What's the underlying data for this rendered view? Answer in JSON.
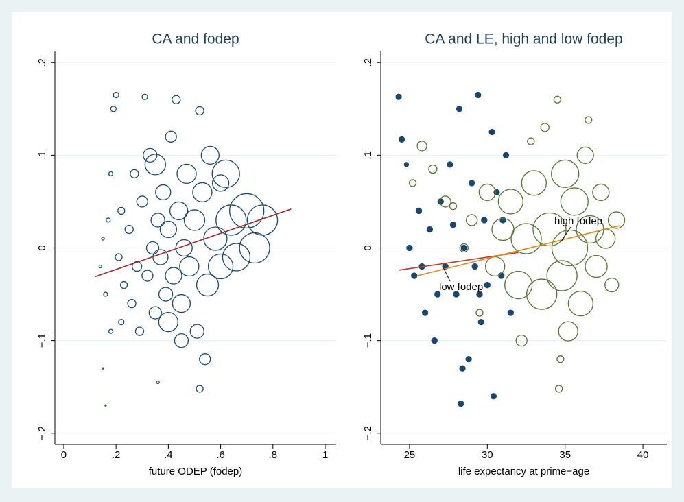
{
  "chart_data": [
    {
      "type": "scatter",
      "title": "CA and fodep",
      "x_label": "future ODEP (fodep)",
      "xlim": [
        -0.034,
        1.042
      ],
      "ylim": [
        -0.212,
        0.212
      ],
      "xticks": [
        0,
        {
          "value": 0.2,
          "label": ".2"
        },
        {
          "value": 0.4,
          "label": ".4"
        },
        {
          "value": 0.6,
          "label": ".6"
        },
        {
          "value": 0.8,
          "label": ".8"
        },
        1
      ],
      "yticks": [
        {
          "value": -0.2,
          "label": "−.2"
        },
        {
          "value": -0.1,
          "label": "−.1"
        },
        0,
        {
          "value": 0.1,
          "label": ".1"
        },
        {
          "value": 0.2,
          "label": ".2"
        }
      ],
      "grid": true,
      "series": [
        {
          "color": "#1a476f",
          "filled": false,
          "x": [
            0.14,
            0.15,
            0.16,
            0.17,
            0.18,
            0.2,
            0.19,
            0.21,
            0.22,
            0.23,
            0.25,
            0.26,
            0.27,
            0.28,
            0.3,
            0.31,
            0.32,
            0.33,
            0.34,
            0.35,
            0.36,
            0.37,
            0.38,
            0.39,
            0.4,
            0.41,
            0.42,
            0.43,
            0.44,
            0.45,
            0.46,
            0.47,
            0.48,
            0.5,
            0.51,
            0.52,
            0.53,
            0.55,
            0.56,
            0.58,
            0.6,
            0.62,
            0.64,
            0.66,
            0.7,
            0.73,
            0.76,
            0.52,
            0.36,
            0.16,
            0.15,
            0.18,
            0.22,
            0.29,
            0.4,
            0.45,
            0.54,
            0.6,
            0.35
          ],
          "y": [
            -0.02,
            0.01,
            -0.05,
            0.03,
            -0.09,
            0.165,
            0.15,
            -0.01,
            0.04,
            -0.04,
            0.02,
            -0.06,
            0.08,
            -0.02,
            0.05,
            0.163,
            -0.03,
            0.1,
            0.0,
            -0.07,
            0.03,
            -0.01,
            0.06,
            -0.05,
            0.02,
            0.12,
            -0.03,
            0.16,
            0.04,
            -0.06,
            0.0,
            0.08,
            -0.02,
            0.03,
            -0.09,
            0.148,
            0.06,
            -0.04,
            0.1,
            0.01,
            -0.02,
            0.08,
            0.03,
            -0.01,
            0.04,
            0.0,
            0.03,
            -0.152,
            -0.145,
            -0.17,
            -0.13,
            0.08,
            -0.08,
            -0.09,
            -0.08,
            -0.1,
            -0.12,
            0.07,
            0.09
          ],
          "size": [
            2,
            2,
            3,
            3,
            3,
            4,
            4,
            5,
            5,
            5,
            6,
            6,
            6,
            7,
            8,
            4,
            8,
            10,
            9,
            9,
            10,
            11,
            11,
            10,
            12,
            8,
            12,
            6,
            13,
            13,
            12,
            14,
            14,
            15,
            10,
            6,
            14,
            16,
            13,
            17,
            18,
            20,
            22,
            20,
            25,
            22,
            22,
            5,
            2,
            1,
            1,
            3,
            4,
            6,
            14,
            10,
            8,
            12,
            15
          ]
        }
      ],
      "lines": [
        {
          "color": "#a4262c",
          "x": [
            0.12,
            0.87
          ],
          "y": [
            -0.031,
            0.042
          ]
        }
      ]
    },
    {
      "type": "scatter",
      "title": "CA and LE, high and low fodep",
      "x_label": "life expectancy at prime−age",
      "xlim": [
        23.15,
        41.54
      ],
      "ylim": [
        -0.212,
        0.212
      ],
      "xticks": [
        25,
        30,
        35,
        40
      ],
      "yticks": [
        {
          "value": -0.2,
          "label": "−.2"
        },
        {
          "value": -0.1,
          "label": "−.1"
        },
        0,
        {
          "value": 0.1,
          "label": ".1"
        },
        {
          "value": 0.2,
          "label": ".2"
        }
      ],
      "grid": true,
      "series": [
        {
          "color": "#1a476f",
          "filled": true,
          "x": [
            24.3,
            24.5,
            24.8,
            25.0,
            25.3,
            25.6,
            26,
            26.3,
            26.6,
            27,
            27.3,
            27.6,
            28,
            28.2,
            28.5,
            28.8,
            29,
            29.2,
            29.4,
            29.6,
            29.8,
            30,
            30.3,
            30.4,
            30.6,
            30.9,
            31.2,
            31.5,
            28.3,
            28.4,
            26.8,
            27.8,
            29.5,
            31,
            25.8
          ],
          "y": [
            0.163,
            0.117,
            0.09,
            0.0,
            -0.03,
            0.04,
            -0.07,
            0.02,
            -0.1,
            0.05,
            -0.02,
            0.09,
            -0.05,
            0.15,
            0.0,
            -0.12,
            0.07,
            -0.02,
            0.165,
            -0.08,
            0.03,
            -0.04,
            0.125,
            -0.16,
            0.06,
            -0.03,
            0.1,
            -0.07,
            -0.168,
            -0.13,
            -0.05,
            0.025,
            -0.05,
            0.03,
            -0.02
          ],
          "size": [
            4,
            4,
            3,
            4,
            4,
            4,
            4,
            4,
            4,
            4,
            4,
            4,
            4,
            4,
            4,
            4,
            4,
            4,
            4,
            4,
            4,
            4,
            4,
            4,
            4,
            4,
            4,
            4,
            4,
            4,
            4,
            4,
            4,
            4,
            4
          ]
        },
        {
          "color": "#55752f",
          "filled": false,
          "x": [
            25.2,
            25.8,
            26.5,
            27.3,
            27.8,
            28.5,
            29,
            29.5,
            30,
            30.5,
            31,
            31.5,
            32,
            32.5,
            33,
            33.5,
            34,
            34.5,
            34.8,
            35,
            35.3,
            35.6,
            36,
            36.3,
            36.6,
            37,
            37.3,
            37.6,
            38,
            38.3,
            35.2,
            34.6,
            34.7,
            33.7,
            32.8,
            36.5,
            32.2
          ],
          "y": [
            0.07,
            0.11,
            0.085,
            0.05,
            0.045,
            0.0,
            0.03,
            -0.07,
            0.06,
            -0.02,
            0.02,
            0.05,
            -0.04,
            0.01,
            0.07,
            -0.05,
            0.02,
            0.16,
            -0.03,
            0.08,
            0.0,
            0.05,
            -0.06,
            0.1,
            0.02,
            -0.02,
            0.06,
            0.01,
            -0.04,
            0.03,
            -0.09,
            -0.152,
            -0.12,
            0.13,
            0.115,
            0.138,
            -0.1
          ],
          "size": [
            5,
            7,
            6,
            8,
            5,
            6,
            8,
            5,
            12,
            14,
            16,
            18,
            20,
            22,
            18,
            22,
            24,
            5,
            22,
            20,
            26,
            20,
            18,
            12,
            20,
            16,
            12,
            14,
            10,
            12,
            14,
            5,
            5,
            6,
            5,
            5,
            8
          ]
        }
      ],
      "lines": [
        {
          "color": "#c0392b",
          "x": [
            24.3,
            32
          ],
          "y": [
            -0.024,
            -0.005
          ]
        },
        {
          "color": "#e8861e",
          "x": [
            25.5,
            38.5
          ],
          "y": [
            -0.03,
            0.024
          ]
        }
      ],
      "annotations": [
        "high fodep",
        "low fodep"
      ]
    }
  ]
}
